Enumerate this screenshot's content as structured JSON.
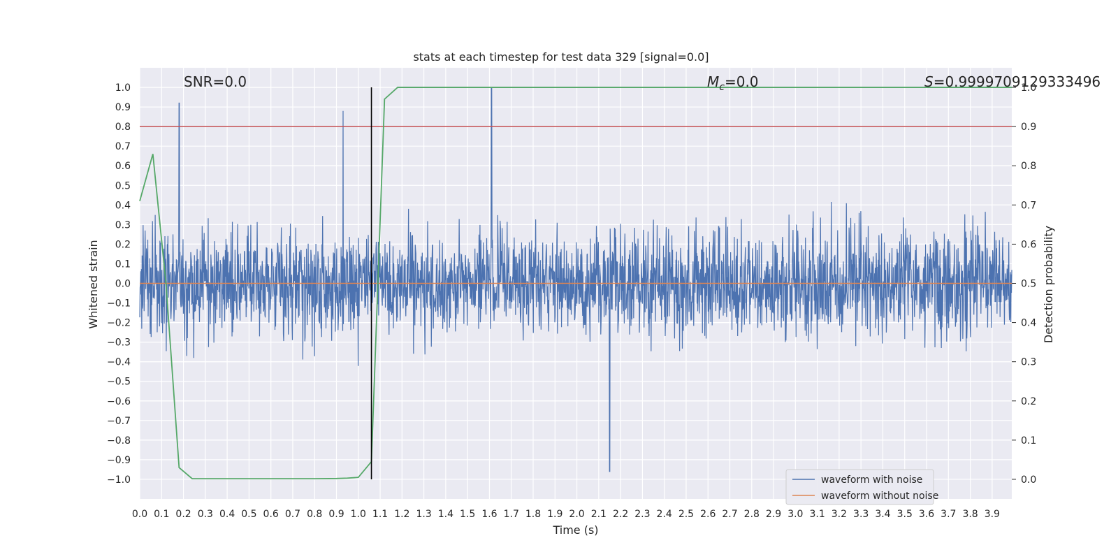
{
  "chart_data": {
    "type": "line",
    "title": "stats at each timestep for test data 329 [signal=0.0]",
    "xlabel": "Time (s)",
    "ylabel": "Whitened strain",
    "y2label": "Detection probability",
    "xlim": [
      0.0,
      3.99
    ],
    "ylim": [
      -1.1,
      1.1
    ],
    "y2lim": [
      -0.05,
      1.05
    ],
    "x_ticks": [
      0.0,
      0.1,
      0.2,
      0.3,
      0.4,
      0.5,
      0.6,
      0.7,
      0.8,
      0.9,
      1.0,
      1.1,
      1.2,
      1.3,
      1.4,
      1.5,
      1.6,
      1.7,
      1.8,
      1.9,
      2.0,
      2.1,
      2.2,
      2.3,
      2.4,
      2.5,
      2.6,
      2.7,
      2.8,
      2.9,
      3.0,
      3.1,
      3.2,
      3.3,
      3.4,
      3.5,
      3.6,
      3.7,
      3.8,
      3.9
    ],
    "x_tick_labels": [
      "0.0",
      "0.1",
      "0.2",
      "0.3",
      "0.4",
      "0.5",
      "0.6",
      "0.7",
      "0.8",
      "0.9",
      "1.0",
      "1.1",
      "1.2",
      "1.3",
      "1.4",
      "1.5",
      "1.6",
      "1.7",
      "1.8",
      "1.9",
      "2.0",
      "2.1",
      "2.2",
      "2.3",
      "2.4",
      "2.5",
      "2.6",
      "2.7",
      "2.8",
      "2.9",
      "3.0",
      "3.1",
      "3.2",
      "3.3",
      "3.4",
      "3.5",
      "3.6",
      "3.7",
      "3.8",
      "3.9"
    ],
    "y_ticks": [
      -1.0,
      -0.9,
      -0.8,
      -0.7,
      -0.6,
      -0.5,
      -0.4,
      -0.3,
      -0.2,
      -0.1,
      0.0,
      0.1,
      0.2,
      0.3,
      0.4,
      0.5,
      0.6,
      0.7,
      0.8,
      0.9,
      1.0
    ],
    "y_tick_labels": [
      "−1.0",
      "−0.9",
      "−0.8",
      "−0.7",
      "−0.6",
      "−0.5",
      "−0.4",
      "−0.3",
      "−0.2",
      "−0.1",
      "0.0",
      "0.1",
      "0.2",
      "0.3",
      "0.4",
      "0.5",
      "0.6",
      "0.7",
      "0.8",
      "0.9",
      "1.0"
    ],
    "y2_ticks": [
      0.0,
      0.1,
      0.2,
      0.3,
      0.4,
      0.5,
      0.6,
      0.7,
      0.8,
      0.9,
      1.0
    ],
    "y2_tick_labels": [
      "0.0",
      "0.1",
      "0.2",
      "0.3",
      "0.4",
      "0.5",
      "0.6",
      "0.7",
      "0.8",
      "0.9",
      "1.0"
    ],
    "grid": true,
    "legend_position": "lower-right",
    "annotations": {
      "snr": "SNR=0.0",
      "mc_symbol": "M",
      "mc_subscript": "c",
      "mc_value": "=0.0",
      "s_symbol": "S",
      "s_value": "=0.9999709129333496"
    },
    "series": [
      {
        "name": "waveform with noise",
        "axis": "left",
        "color": "#4c72b0",
        "description_of_shape": "dense noise spanning roughly -0.8 to 0.9",
        "notable_peaks": [
          [
            0.18,
            0.92
          ],
          [
            0.93,
            0.88
          ],
          [
            1.61,
            1.0
          ],
          [
            2.15,
            -0.96
          ]
        ]
      },
      {
        "name": "waveform without noise",
        "axis": "left",
        "color": "#dd8452",
        "x": [
          0.0,
          3.99
        ],
        "y": [
          0.0,
          0.0
        ]
      },
      {
        "name": "",
        "axis": "right",
        "color": "#55a868",
        "x": [
          0.0,
          0.06,
          0.12,
          0.18,
          0.24,
          0.3,
          0.4,
          0.5,
          0.6,
          0.7,
          0.8,
          0.9,
          0.95,
          1.0,
          1.06,
          1.12,
          1.18,
          1.3,
          1.5,
          2.0,
          2.5,
          3.0,
          3.5,
          3.99
        ],
        "y": [
          0.71,
          0.83,
          0.5,
          0.03,
          0.0015,
          0.0015,
          0.0015,
          0.0015,
          0.0015,
          0.0015,
          0.0015,
          0.002,
          0.003,
          0.005,
          0.045,
          0.97,
          1.0,
          1.0,
          1.0,
          1.0,
          1.0,
          1.0,
          1.0,
          1.0
        ]
      }
    ],
    "threshold_line": {
      "axis": "right",
      "value": 0.9,
      "color": "#c44e52"
    },
    "marker_line": {
      "x": 1.06,
      "y_from": -1.0,
      "y_to": 1.0,
      "color": "#000000"
    }
  }
}
